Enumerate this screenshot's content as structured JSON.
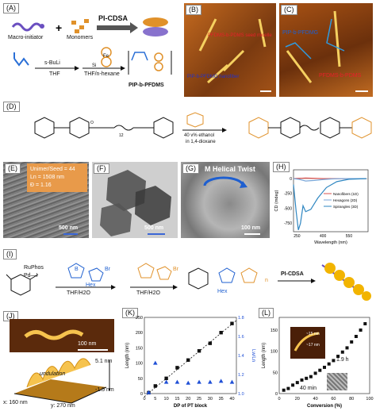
{
  "panels": {
    "a": {
      "label": "(A)",
      "macro": "Macro-initiator",
      "monomers": "Monomers",
      "method": "PI-CDSA",
      "reagent1": "s-BuLi",
      "solvent1": "THF",
      "solvent2": "THF/n-hexane",
      "product": "PIP-b-PFDMS",
      "fe": "Fe",
      "si": "Si"
    },
    "b": {
      "label": "(B)",
      "ann1": "PFDMS-b-PDMS seed micelle",
      "ann2": "PIP-b-PFDMG nanofiber"
    },
    "c": {
      "label": "(C)",
      "ann1": "PIP-b-PFDMG",
      "ann2": "PFDMS-b-PDMS"
    },
    "d": {
      "label": "(D)",
      "cond1": "40 v% ethanol",
      "cond2": "in 1,4-dioxane",
      "sub": "12"
    },
    "e": {
      "label": "(E)",
      "info1": "Unimer/Seed = 44",
      "info2": "Ln = 1508 nm",
      "info3": "Đ = 1.16",
      "scale": "500 nm"
    },
    "f": {
      "label": "(F)",
      "scale": "500 nm"
    },
    "g": {
      "label": "(G)",
      "title": "M Helical Twist",
      "scale": "100 nm"
    },
    "h": {
      "label": "(H)",
      "ylabel": "CD (mdeg)",
      "xlabel": "Wavelength (nm)",
      "legend": [
        "Nanofibers (1D)",
        "Hexagons (2D)",
        "Spirangles (3D)"
      ]
    },
    "i": {
      "label": "(I)",
      "reagent": "RuPhos",
      "pd": "Pd—I",
      "solvent": "THF/H2O",
      "solvent2": "THF/H2O",
      "method": "PI-CDSA",
      "br": "Br",
      "hex": "Hex",
      "b": "B",
      "n": "n"
    },
    "j": {
      "label": "(J)",
      "scale": "100 nm",
      "z1": "5.1 nm",
      "z2": "-1.5 nm",
      "x": "x: 160 nm",
      "y": "y: 270 nm",
      "annot": "undulation"
    },
    "k": {
      "label": "(K)",
      "xlabel": "DP of PT block",
      "ylabel": "Length (nm)",
      "y2label": "Lw/Ln"
    },
    "l": {
      "label": "(L)",
      "xlabel": "Conversion (%)",
      "ylabel": "Length (nm)",
      "lz": "Lz",
      "a1": "~15 nm",
      "a2": "~17 nm",
      "t1": "1.9 h",
      "t2": "40 min",
      "scale": "100 nm"
    }
  },
  "chart_data": [
    {
      "type": "line",
      "title": "",
      "xlabel": "Wavelength (nm)",
      "ylabel": "CD (mdeg)",
      "xlim": [
        230,
        660
      ],
      "ylim": [
        -900,
        150
      ],
      "xticks": [
        250,
        400,
        550
      ],
      "yticks": [
        0,
        -250,
        -500,
        -750
      ],
      "series": [
        {
          "name": "Nanofibers (1D)",
          "color": "#d9534f",
          "x": [
            230,
            260,
            300,
            350,
            400,
            450,
            500,
            550,
            600,
            650
          ],
          "y": [
            0,
            5,
            10,
            5,
            0,
            0,
            0,
            0,
            0,
            0
          ]
        },
        {
          "name": "Hexagons (2D)",
          "color": "#7aa6d8",
          "x": [
            230,
            260,
            300,
            350,
            400,
            450,
            500,
            550,
            600,
            650
          ],
          "y": [
            0,
            -10,
            -40,
            -30,
            -15,
            -5,
            0,
            0,
            0,
            0
          ]
        },
        {
          "name": "Spirangles (3D)",
          "color": "#2e86c1",
          "x": [
            230,
            245,
            258,
            270,
            285,
            300,
            330,
            370,
            420,
            480,
            550,
            650
          ],
          "y": [
            -100,
            -550,
            -870,
            -760,
            -460,
            -560,
            -520,
            -330,
            -150,
            -50,
            -10,
            0
          ]
        }
      ]
    },
    {
      "type": "scatter",
      "title": "",
      "xlabel": "DP of PT block",
      "ylabel": "Length (nm)",
      "y2label": "Lw/Ln",
      "xlim": [
        0,
        42
      ],
      "ylim": [
        0,
        250
      ],
      "y2lim": [
        1.0,
        1.8
      ],
      "xticks": [
        0,
        5,
        10,
        15,
        20,
        25,
        30,
        35,
        40
      ],
      "yticks": [
        0,
        50,
        100,
        150,
        200,
        250
      ],
      "y2ticks": [
        1.0,
        1.2,
        1.4,
        1.6,
        1.8
      ],
      "series": [
        {
          "name": "",
          "marker": "square",
          "color": "#111111",
          "x": [
            2,
            5,
            10,
            15,
            20,
            25,
            30,
            35,
            40
          ],
          "y": [
            3,
            25,
            50,
            85,
            110,
            140,
            165,
            200,
            230
          ]
        },
        {
          "name": "",
          "marker": "triangle",
          "color": "#1f4fd6",
          "axis": "y2",
          "x": [
            2,
            5,
            10,
            15,
            20,
            25,
            30,
            35,
            40
          ],
          "y": [
            1.01,
            1.32,
            1.12,
            1.12,
            1.11,
            1.12,
            1.12,
            1.13,
            1.12
          ]
        }
      ],
      "fit": {
        "x": [
          0,
          42
        ],
        "y": [
          -10,
          240
        ]
      }
    },
    {
      "type": "scatter",
      "title": "",
      "xlabel": "Conversion (%)",
      "ylabel": "Length (nm)",
      "xlim": [
        0,
        100
      ],
      "ylim": [
        0,
        180
      ],
      "xticks": [
        0,
        20,
        40,
        60,
        80,
        100
      ],
      "yticks": [
        0,
        50,
        100,
        150
      ],
      "series": [
        {
          "name": "",
          "marker": "square",
          "color": "#111111",
          "x": [
            5,
            10,
            15,
            20,
            25,
            30,
            35,
            40,
            45,
            50,
            55,
            60,
            65,
            70,
            75,
            80,
            85,
            90,
            95
          ],
          "y": [
            8,
            12,
            20,
            26,
            32,
            36,
            40,
            48,
            55,
            62,
            70,
            78,
            88,
            98,
            108,
            122,
            135,
            150,
            165
          ]
        }
      ]
    }
  ]
}
